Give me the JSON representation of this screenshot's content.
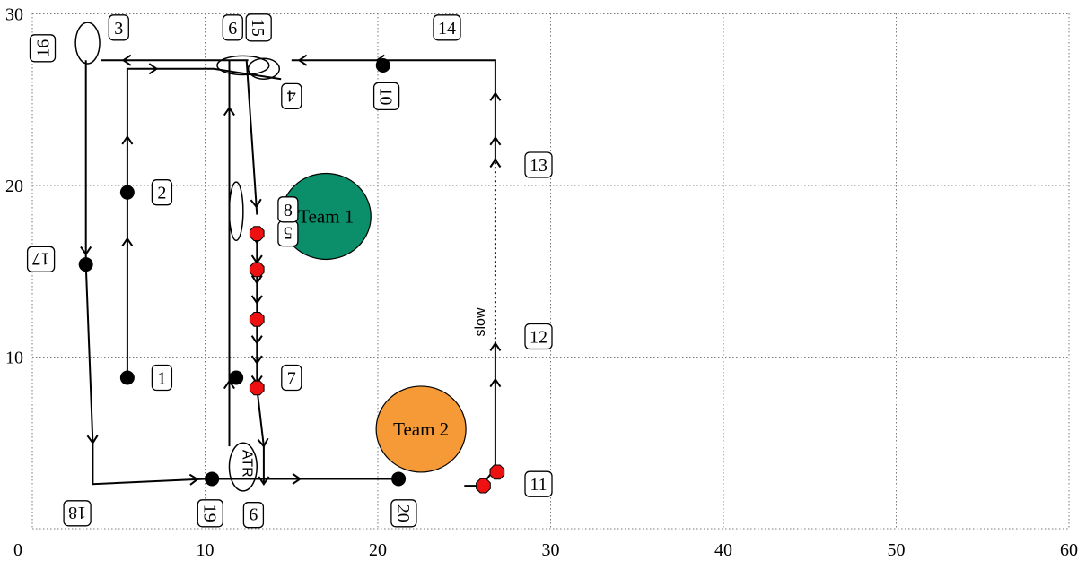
{
  "axes": {
    "x_ticks": [
      "0",
      "10",
      "20",
      "30",
      "40",
      "50",
      "60"
    ],
    "y_ticks": [
      "10",
      "20",
      "30"
    ],
    "xlim": [
      0,
      60
    ],
    "ylim": [
      0,
      30
    ],
    "grid": true
  },
  "teams": [
    {
      "label": "Team 1",
      "x": 17,
      "y": 18.2,
      "color": "#0a8f6a"
    },
    {
      "label": "Team 2",
      "x": 22.5,
      "y": 5.8,
      "color": "#f59a37"
    }
  ],
  "annotations": {
    "slow": "slow",
    "atr": "ATR"
  },
  "waypoints": [
    {
      "text": "1",
      "x": 7.5,
      "y": 8.8,
      "rot": 0
    },
    {
      "text": "2",
      "x": 7.5,
      "y": 19.6,
      "rot": 0
    },
    {
      "text": "3",
      "x": 5,
      "y": 29.2,
      "rot": 0
    },
    {
      "text": "4",
      "x": 15,
      "y": 25.2,
      "rot": 180
    },
    {
      "text": "5",
      "x": 14.8,
      "y": 17.2,
      "rot": 180
    },
    {
      "text": "6",
      "x": 11.6,
      "y": 29.2,
      "rot": 0
    },
    {
      "text": "7",
      "x": 15,
      "y": 8.8,
      "rot": 0
    },
    {
      "text": "8",
      "x": 14.8,
      "y": 18.6,
      "rot": 0
    },
    {
      "text": "9",
      "x": 12.8,
      "y": 0.8,
      "rot": 180
    },
    {
      "text": "10",
      "x": 20.5,
      "y": 25.2,
      "rot": 90
    },
    {
      "text": "11",
      "x": 29.3,
      "y": 2.6,
      "rot": 0
    },
    {
      "text": "12",
      "x": 29.3,
      "y": 11.2,
      "rot": 0
    },
    {
      "text": "13",
      "x": 29.3,
      "y": 21.2,
      "rot": 0
    },
    {
      "text": "14",
      "x": 24,
      "y": 29.2,
      "rot": 0
    },
    {
      "text": "15",
      "x": 13.1,
      "y": 29.2,
      "rot": 90
    },
    {
      "text": "16",
      "x": 0.6,
      "y": 28,
      "rot": 270
    },
    {
      "text": "17",
      "x": 0.5,
      "y": 15.7,
      "rot": 180
    },
    {
      "text": "18",
      "x": 2.6,
      "y": 0.9,
      "rot": 180
    },
    {
      "text": "19",
      "x": 10.3,
      "y": 0.9,
      "rot": 90
    },
    {
      "text": "20",
      "x": 21.5,
      "y": 0.9,
      "rot": 90
    }
  ],
  "paths": [
    {
      "pts": [
        [
          5.5,
          8.8
        ],
        [
          5.5,
          19.6
        ]
      ],
      "arrows": [
        0.75
      ]
    },
    {
      "pts": [
        [
          5.5,
          19.6
        ],
        [
          5.5,
          26.8
        ],
        [
          10.5,
          26.8
        ],
        [
          14.4,
          26.2
        ]
      ],
      "arrows": [
        0.2,
        0.55
      ]
    },
    {
      "pts": [
        [
          12.5,
          27.3
        ],
        [
          4,
          27.3
        ]
      ],
      "arrows": [
        0.85
      ]
    },
    {
      "pts": [
        [
          24,
          27.3
        ],
        [
          15,
          27.3
        ]
      ],
      "arrows": [
        0.45,
        0.95
      ]
    },
    {
      "pts": [
        [
          12.4,
          27.3
        ],
        [
          13,
          18.3
        ]
      ],
      "arrows": [
        0.95
      ]
    },
    {
      "pts": [
        [
          13,
          17.2
        ],
        [
          13,
          8.2
        ]
      ],
      "arrows": [
        0.06,
        0.19,
        0.32,
        0.45,
        0.58,
        0.71,
        0.84,
        0.97
      ]
    },
    {
      "pts": [
        [
          13,
          8.2
        ],
        [
          13.4,
          4.8
        ]
      ],
      "arrows": [
        1.0
      ]
    },
    {
      "pts": [
        [
          13.4,
          4.8
        ],
        [
          13.4,
          2.6
        ]
      ],
      "arrows": [
        1.0
      ]
    },
    {
      "pts": [
        [
          11.4,
          4.8
        ],
        [
          11.4,
          8.8
        ]
      ],
      "arrows": [
        0.95
      ]
    },
    {
      "pts": [
        [
          11.4,
          8.8
        ],
        [
          11.4,
          27.3
        ]
      ],
      "arrows": [
        0.85
      ]
    },
    {
      "pts": [
        [
          3.1,
          27.3
        ],
        [
          3.1,
          15.4
        ]
      ],
      "arrows": [
        0.95
      ]
    },
    {
      "pts": [
        [
          3.1,
          15.4
        ],
        [
          3.5,
          5
        ]
      ],
      "arrows": [
        1.0
      ]
    },
    {
      "pts": [
        [
          3.5,
          5
        ],
        [
          3.5,
          2.6
        ],
        [
          10,
          2.9
        ]
      ],
      "arrows": [
        0.95
      ]
    },
    {
      "pts": [
        [
          10,
          2.9
        ],
        [
          21,
          2.9
        ]
      ],
      "arrows": [
        0.5
      ]
    },
    {
      "pts": [
        [
          25,
          2.5
        ],
        [
          26,
          2.5
        ],
        [
          26.7,
          3.4
        ]
      ],
      "arrows": []
    },
    {
      "pts": [
        [
          26.8,
          3.3
        ],
        [
          26.8,
          10.8
        ]
      ],
      "arrows": [
        0.72,
        1.0
      ]
    },
    {
      "pts": [
        [
          26.8,
          21.5
        ],
        [
          26.8,
          25.8
        ],
        [
          26.8,
          27.3
        ],
        [
          24,
          27.3
        ]
      ],
      "arrows": [
        0.15,
        0.45
      ]
    }
  ],
  "dotted_paths": [
    {
      "pts": [
        [
          26.8,
          10.8
        ],
        [
          26.8,
          21.5
        ]
      ],
      "arrows": [
        1.0
      ]
    }
  ],
  "black_dots": [
    [
      5.5,
      8.8
    ],
    [
      5.5,
      19.6
    ],
    [
      3.1,
      15.4
    ],
    [
      10.4,
      2.9
    ],
    [
      20.3,
      27
    ],
    [
      11.8,
      8.8
    ],
    [
      21.2,
      2.9
    ]
  ],
  "red_markers": [
    [
      13,
      17.2
    ],
    [
      13,
      15.1
    ],
    [
      13,
      12.2
    ],
    [
      13,
      8.2
    ],
    [
      26.1,
      2.5
    ],
    [
      26.9,
      3.3
    ]
  ],
  "loops": [
    {
      "type": "ellipse",
      "cx": 12.2,
      "cy": 27,
      "rx": 1.5,
      "ry": 0.55
    },
    {
      "type": "ellipse",
      "cx": 11.8,
      "cy": 18.5,
      "rx": 0.4,
      "ry": 1.7
    },
    {
      "type": "ellipse",
      "cx": 12.2,
      "cy": 3.6,
      "rx": 0.8,
      "ry": 1.4
    },
    {
      "type": "ellipse",
      "cx": 13.4,
      "cy": 26.8,
      "rx": 0.9,
      "ry": 0.6
    },
    {
      "type": "ellipse",
      "cx": 3.2,
      "cy": 28.3,
      "rx": 0.7,
      "ry": 1.2
    }
  ]
}
